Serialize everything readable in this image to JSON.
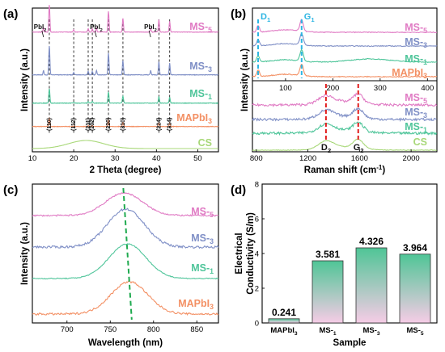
{
  "colors": {
    "ms5": "#e07bc4",
    "ms3": "#7f8fc6",
    "ms1": "#4fc59a",
    "mapbi": "#f39064",
    "cs": "#a8d878",
    "dash_black": "#222222",
    "dash_blue": "#2eb6e3",
    "dash_red": "#e11b1b",
    "dash_green": "#1faa4f",
    "bar_top": "#4fc596",
    "bar_bottom": "#f6cce6"
  },
  "chart_data": [
    {
      "panel": "(a)",
      "type": "line",
      "xlabel": "2 Theta (degree)",
      "ylabel": "Intensity (a.u.)",
      "xlim": [
        10,
        55
      ],
      "xticks": [
        10,
        20,
        30,
        40,
        50
      ],
      "series": [
        {
          "name": "MS-5",
          "key": "ms5"
        },
        {
          "name": "MS-3",
          "key": "ms3"
        },
        {
          "name": "MS-1",
          "key": "ms1"
        },
        {
          "name": "MAPbI3",
          "key": "mapbi"
        },
        {
          "name": "CS",
          "key": "cs"
        }
      ],
      "peaks": [
        {
          "x": 14.1,
          "label": "(110)"
        },
        {
          "x": 20.0,
          "label": "(112)"
        },
        {
          "x": 23.5,
          "label": "(211)"
        },
        {
          "x": 24.5,
          "label": "(202)"
        },
        {
          "x": 28.4,
          "label": "(220)"
        },
        {
          "x": 31.9,
          "label": "(310)"
        },
        {
          "x": 40.6,
          "label": "(224)"
        },
        {
          "x": 43.2,
          "label": "(314)"
        }
      ],
      "pbi_markers": [
        {
          "x": 12.7,
          "label": "PbI2"
        },
        {
          "x": 25.5,
          "label": "PbI2"
        },
        {
          "x": 38.6,
          "label": "PbI2"
        }
      ]
    },
    {
      "panel": "(b)",
      "type": "line",
      "xlabel": "Raman shift (cm-1)",
      "ylabel": "Intensity (a.u.)",
      "top": {
        "xlim": [
          30,
          420
        ],
        "xticks": [
          100,
          200,
          300,
          400
        ],
        "markers": [
          {
            "x": 42,
            "label": "D1"
          },
          {
            "x": 134,
            "label": "G1"
          }
        ],
        "series": [
          {
            "name": "MS-5",
            "key": "ms5"
          },
          {
            "name": "MS-3",
            "key": "ms3"
          },
          {
            "name": "MS-1",
            "key": "ms1"
          },
          {
            "name": "MAPbI3",
            "key": "mapbi"
          }
        ]
      },
      "bottom": {
        "xlim": [
          770,
          2200
        ],
        "xticks": [
          800,
          1200,
          1600,
          2000
        ],
        "markers": [
          {
            "x": 1340,
            "label": "D2"
          },
          {
            "x": 1590,
            "label": "G2"
          }
        ],
        "series": [
          {
            "name": "MS-5",
            "key": "ms5"
          },
          {
            "name": "MS-3",
            "key": "ms3"
          },
          {
            "name": "MS-1",
            "key": "ms1"
          },
          {
            "name": "CS",
            "key": "cs"
          }
        ]
      }
    },
    {
      "panel": "(c)",
      "type": "line",
      "xlabel": "Wavelength (nm)",
      "ylabel": "Intensity (a.u.)",
      "xlim": [
        660,
        875
      ],
      "xticks": [
        700,
        750,
        800,
        850
      ],
      "series": [
        {
          "name": "MS-5",
          "key": "ms5",
          "peak": 766
        },
        {
          "name": "MS-3",
          "key": "ms3",
          "peak": 768
        },
        {
          "name": "MS-1",
          "key": "ms1",
          "peak": 770
        },
        {
          "name": "MAPbI3",
          "key": "mapbi",
          "peak": 772
        }
      ]
    },
    {
      "panel": "(d)",
      "type": "bar",
      "xlabel": "Sample",
      "ylabel": "Electrical Conductivity (S/m)",
      "ylim": [
        0,
        8
      ],
      "yticks": [
        0,
        2,
        4,
        6,
        8
      ],
      "categories": [
        "MAPbI3",
        "MS-1",
        "MS-3",
        "MS-5"
      ],
      "values": [
        0.241,
        3.581,
        4.326,
        3.964
      ],
      "value_labels": [
        "0.241",
        "3.581",
        "4.326",
        "3.964"
      ]
    }
  ]
}
